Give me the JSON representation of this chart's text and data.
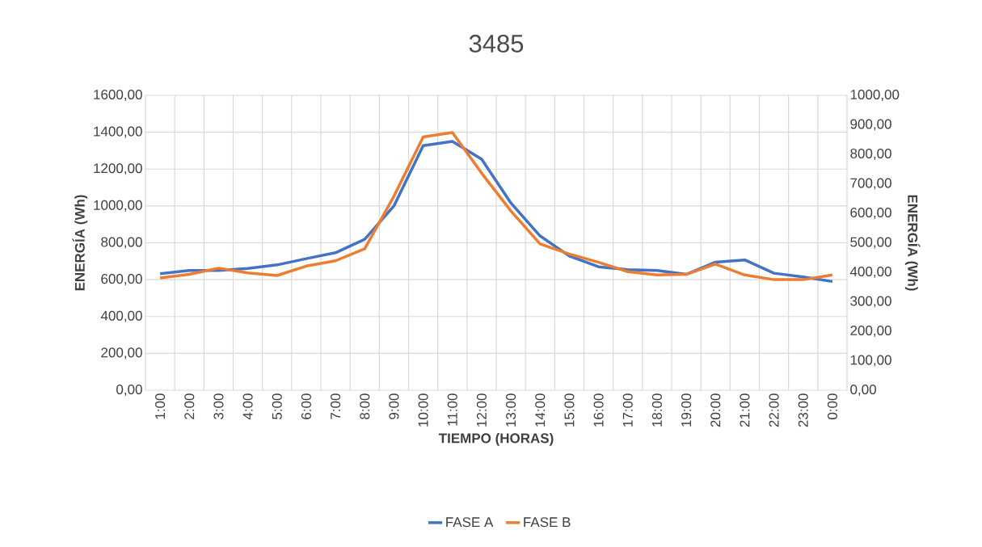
{
  "chart_data": {
    "type": "line",
    "title": "3485",
    "xlabel": "TIEMPO (HORAS)",
    "ylabel": "ENERGÍA (Wh)",
    "y2label": "ENERGÍA (Wh)",
    "categories": [
      "1:00",
      "2:00",
      "3:00",
      "4:00",
      "5:00",
      "6:00",
      "7:00",
      "8:00",
      "9:00",
      "10:00",
      "11:00",
      "12:00",
      "13:00",
      "14:00",
      "15:00",
      "16:00",
      "17:00",
      "18:00",
      "19:00",
      "20:00",
      "21:00",
      "22:00",
      "23:00",
      "0:00"
    ],
    "series": [
      {
        "name": "FASE A",
        "color": "#4472c4",
        "axis": "y",
        "values": [
          632,
          650,
          650,
          661,
          680,
          714,
          746,
          819,
          1000,
          1327,
          1350,
          1254,
          1016,
          837,
          728,
          670,
          654,
          650,
          629,
          695,
          707,
          635,
          615,
          590
        ]
      },
      {
        "name": "FASE B",
        "color": "#ed7d31",
        "axis": "y2",
        "values": [
          381,
          393,
          414,
          398,
          389,
          421,
          439,
          480,
          658,
          859,
          874,
          736,
          608,
          496,
          462,
          434,
          402,
          391,
          393,
          428,
          391,
          375,
          375,
          391
        ]
      }
    ],
    "ylim": [
      0,
      1600
    ],
    "yticks": [
      {
        "value": 0,
        "label": "0,00"
      },
      {
        "value": 200,
        "label": "200,00"
      },
      {
        "value": 400,
        "label": "400,00"
      },
      {
        "value": 600,
        "label": "600,00"
      },
      {
        "value": 800,
        "label": "800,00"
      },
      {
        "value": 1000,
        "label": "1000,00"
      },
      {
        "value": 1200,
        "label": "1200,00"
      },
      {
        "value": 1400,
        "label": "1400,00"
      },
      {
        "value": 1600,
        "label": "1600,00"
      }
    ],
    "y2lim": [
      0,
      1000
    ],
    "y2ticks": [
      {
        "value": 0,
        "label": "0,00"
      },
      {
        "value": 100,
        "label": "100,00"
      },
      {
        "value": 200,
        "label": "200,00"
      },
      {
        "value": 300,
        "label": "300,00"
      },
      {
        "value": 400,
        "label": "400,00"
      },
      {
        "value": 500,
        "label": "500,00"
      },
      {
        "value": 600,
        "label": "600,00"
      },
      {
        "value": 700,
        "label": "700,00"
      },
      {
        "value": 800,
        "label": "800,00"
      },
      {
        "value": 900,
        "label": "900,00"
      },
      {
        "value": 1000,
        "label": "1000,00"
      }
    ],
    "grid": true,
    "legend": "bottom",
    "line_style": "solid"
  }
}
